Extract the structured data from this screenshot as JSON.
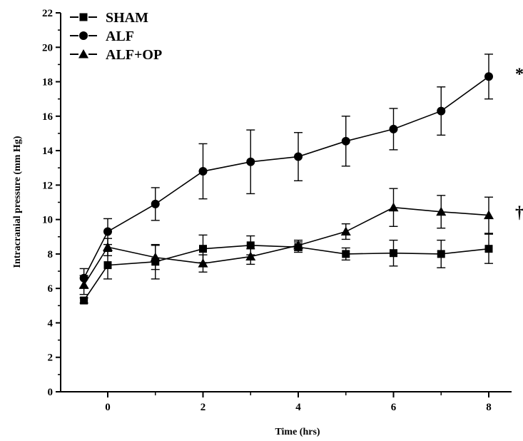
{
  "chart_data": {
    "type": "line",
    "xlabel": "Time (hrs)",
    "ylabel": "Intracranial pressure (mm Hg)",
    "xlim": [
      -1,
      9
    ],
    "ylim": [
      0,
      22
    ],
    "x_ticks": [
      0,
      2,
      4,
      6,
      8
    ],
    "y_ticks": [
      0,
      2,
      4,
      6,
      8,
      10,
      12,
      14,
      16,
      18,
      20,
      22
    ],
    "legend_position": "top-left",
    "grid": false,
    "series": [
      {
        "name": "SHAM",
        "marker": "square",
        "x": [
          -0.5,
          0,
          1,
          2,
          3,
          4,
          5,
          6,
          7,
          8
        ],
        "values": [
          5.3,
          7.35,
          7.55,
          8.3,
          8.5,
          8.4,
          8.0,
          8.05,
          8.0,
          8.3
        ],
        "error": [
          0.15,
          0.8,
          1.0,
          0.8,
          0.55,
          0.3,
          0.35,
          0.75,
          0.8,
          0.85
        ]
      },
      {
        "name": "ALF",
        "marker": "circle",
        "x": [
          -0.5,
          0,
          1,
          2,
          3,
          4,
          5,
          6,
          7,
          8
        ],
        "values": [
          6.6,
          9.3,
          10.9,
          12.8,
          13.35,
          13.65,
          14.55,
          15.25,
          16.3,
          18.3
        ],
        "error": [
          0.55,
          0.75,
          0.95,
          1.6,
          1.85,
          1.4,
          1.45,
          1.2,
          1.4,
          1.3
        ]
      },
      {
        "name": "ALF+OP",
        "marker": "triangle",
        "x": [
          -0.5,
          0,
          1,
          2,
          3,
          4,
          5,
          6,
          7,
          8
        ],
        "values": [
          6.2,
          8.4,
          7.8,
          7.45,
          7.85,
          8.5,
          9.3,
          10.7,
          10.45,
          10.25
        ],
        "error": [
          0.55,
          0.5,
          0.7,
          0.5,
          0.45,
          0.3,
          0.45,
          1.1,
          0.95,
          1.05
        ]
      }
    ],
    "annotations": [
      {
        "text": "*",
        "series": "ALF"
      },
      {
        "text": "†",
        "series": "ALF+OP"
      }
    ]
  }
}
